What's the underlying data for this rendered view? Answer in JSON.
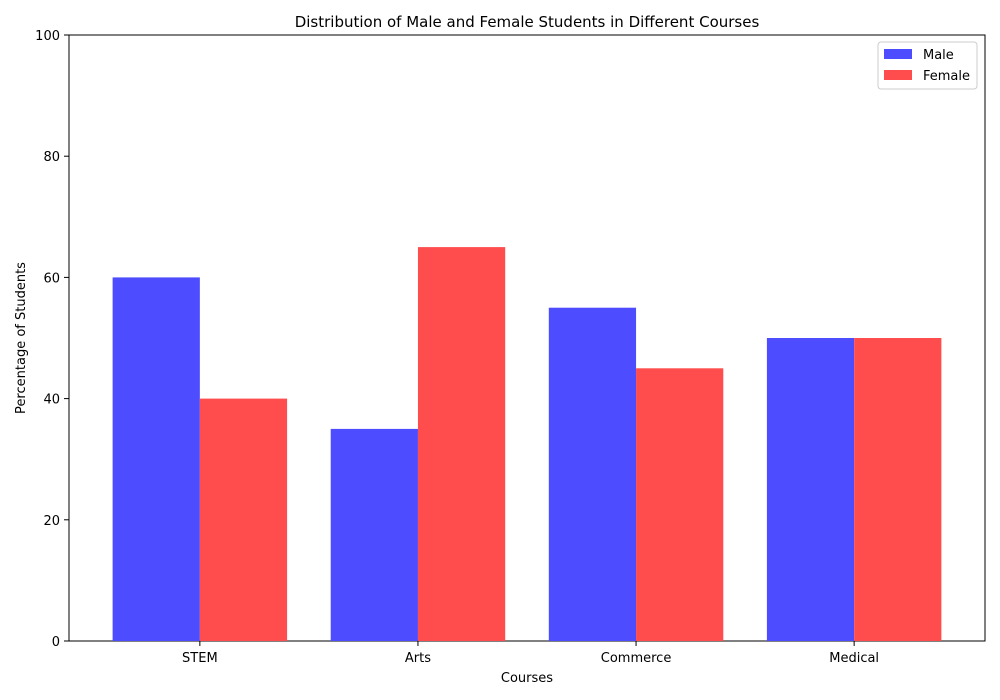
{
  "chart_data": {
    "type": "bar",
    "title": "Distribution of Male and Female Students in Different Courses",
    "xlabel": "Courses",
    "ylabel": "Percentage of Students",
    "categories": [
      "STEM",
      "Arts",
      "Commerce",
      "Medical"
    ],
    "series": [
      {
        "name": "Male",
        "values": [
          60,
          35,
          55,
          50
        ],
        "color": "#4d4dff"
      },
      {
        "name": "Female",
        "values": [
          40,
          65,
          45,
          50
        ],
        "color": "#ff4d4d"
      }
    ],
    "ylim": [
      0,
      100
    ],
    "yticks": [
      0,
      20,
      40,
      60,
      80,
      100
    ],
    "grid": false,
    "legend_position": "top-right"
  }
}
